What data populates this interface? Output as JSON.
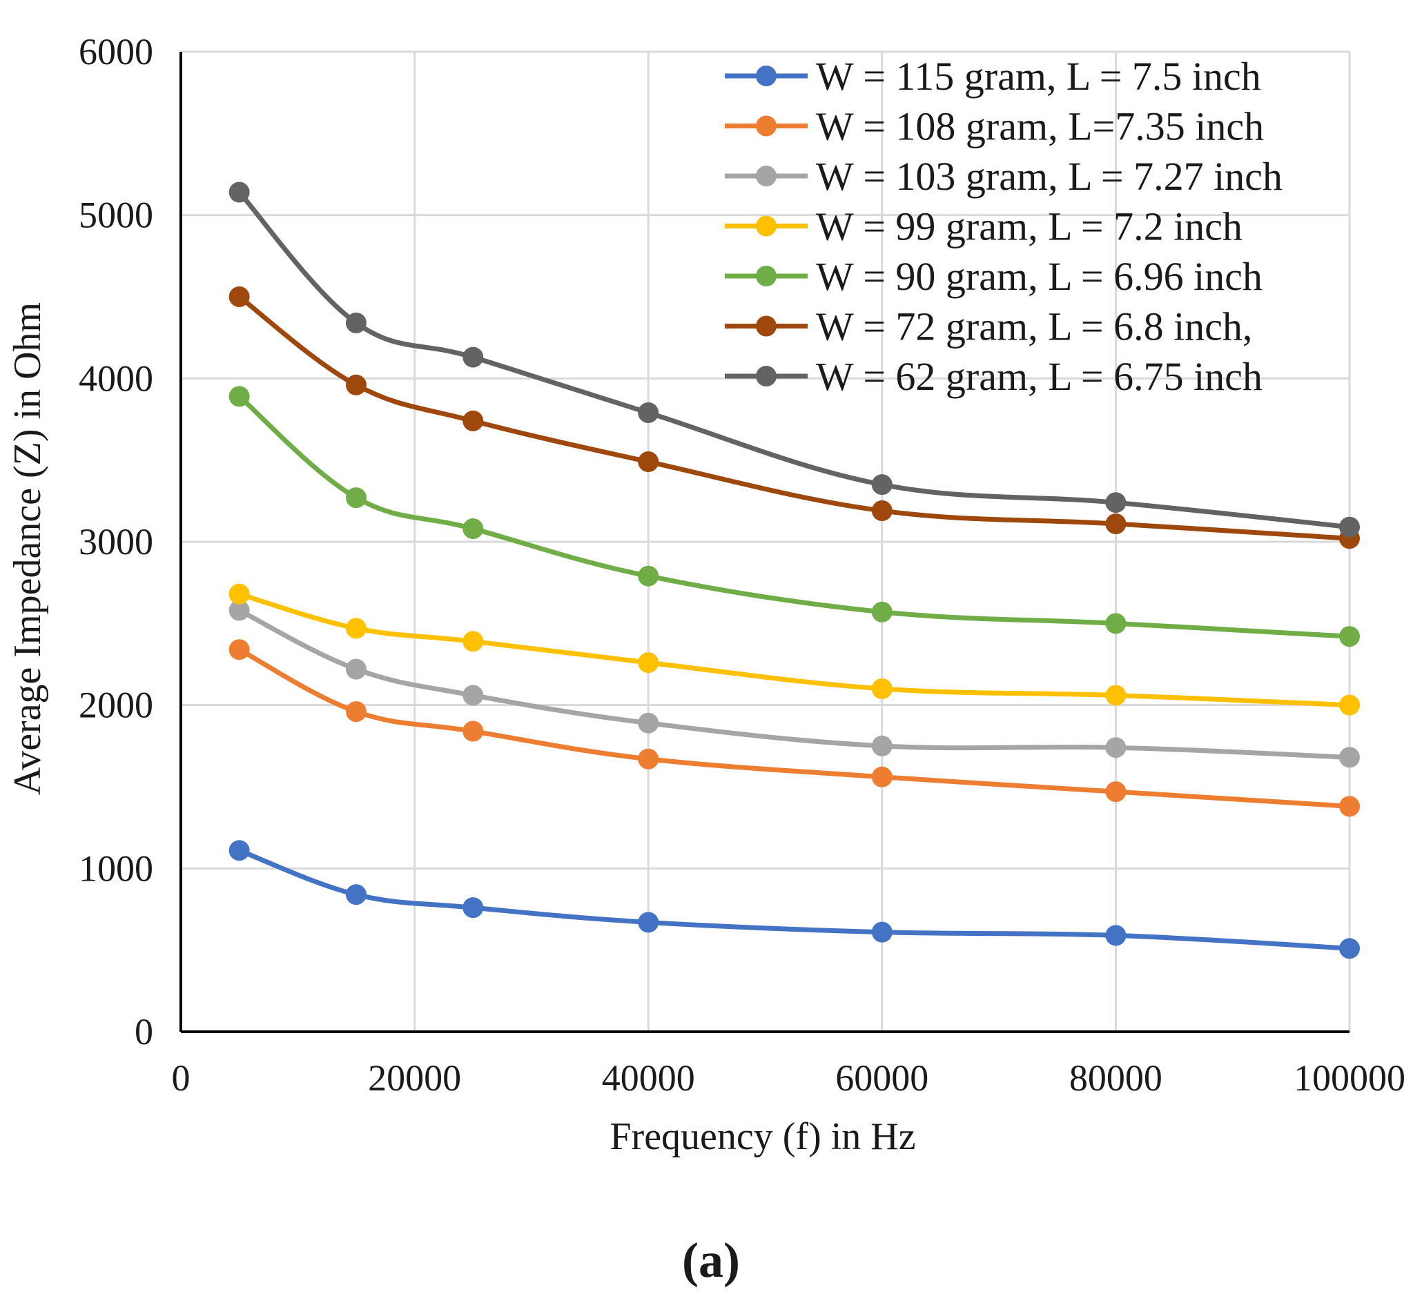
{
  "chart_data": {
    "type": "line",
    "xlabel": "Frequency (f) in Hz",
    "ylabel": "Average Impedance (Z) in Ohm",
    "caption": "(a)",
    "xlim": [
      0,
      100000
    ],
    "ylim": [
      0,
      6000
    ],
    "x_ticks": [
      "0",
      "20000",
      "40000",
      "60000",
      "80000",
      "100000"
    ],
    "y_ticks": [
      "0",
      "1000",
      "2000",
      "3000",
      "4000",
      "5000",
      "6000"
    ],
    "grid": true,
    "legend_position": "top-right",
    "x": [
      5000,
      15000,
      25000,
      40000,
      60000,
      80000,
      100000
    ],
    "series": [
      {
        "name": "W = 115 gram, L = 7.5 inch",
        "color": "#4472C4",
        "values": [
          1110,
          840,
          760,
          670,
          610,
          590,
          510
        ]
      },
      {
        "name": "W = 108 gram, L=7.35 inch",
        "color": "#ED7D31",
        "values": [
          2340,
          1960,
          1840,
          1670,
          1560,
          1470,
          1380
        ]
      },
      {
        "name": "W = 103 gram, L = 7.27 inch",
        "color": "#A5A5A5",
        "values": [
          2580,
          2220,
          2060,
          1890,
          1750,
          1740,
          1680
        ]
      },
      {
        "name": "W = 99 gram, L = 7.2 inch",
        "color": "#FFC000",
        "values": [
          2680,
          2470,
          2390,
          2260,
          2100,
          2060,
          2000
        ]
      },
      {
        "name": "W = 90 gram, L = 6.96 inch",
        "color": "#70AD47",
        "values": [
          3890,
          3270,
          3080,
          2790,
          2570,
          2500,
          2420
        ]
      },
      {
        "name": "W = 72 gram, L = 6.8 inch,",
        "color": "#9E480E",
        "values": [
          4500,
          3960,
          3740,
          3490,
          3190,
          3110,
          3020
        ]
      },
      {
        "name": "W = 62 gram, L = 6.75 inch",
        "color": "#636363",
        "values": [
          5140,
          4340,
          4130,
          3790,
          3350,
          3240,
          3090
        ]
      }
    ]
  }
}
